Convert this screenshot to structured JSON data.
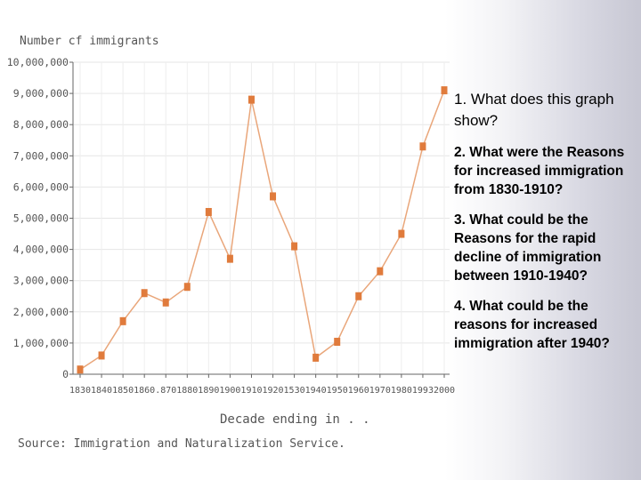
{
  "chart_data": {
    "type": "line",
    "ylabel": "Number cf immigrants",
    "xlabel": "Decade ending in . .",
    "source": "Source: Immigration and Naturalization Service.",
    "ylim": [
      0,
      10000000
    ],
    "y_ticks": [
      "0",
      "1,000,000",
      "2,000,000",
      "3,000,000",
      "4,000,000",
      "5,000,000",
      "6,000,000",
      "7,000,000",
      "8,000,000",
      "9,000,000",
      "10,000,000"
    ],
    "x_tick_labels": [
      "1830",
      "1840",
      "1850",
      "1860",
      ".870",
      "1880",
      "1890",
      "1900",
      "1910",
      "1920",
      "1530",
      "1940",
      "1950",
      "1960",
      "1970",
      "1980",
      "1993",
      "2000"
    ],
    "x": [
      1830,
      1840,
      1850,
      1860,
      1870,
      1880,
      1890,
      1900,
      1910,
      1920,
      1930,
      1940,
      1950,
      1960,
      1970,
      1980,
      1990,
      2000
    ],
    "values": [
      150000,
      600000,
      1700000,
      2600000,
      2300000,
      2800000,
      5200000,
      3700000,
      8800000,
      5700000,
      4100000,
      530000,
      1040000,
      2500000,
      3300000,
      4500000,
      7300000,
      9100000
    ],
    "series_color": "#e07b3c",
    "line_color": "#e9a67a"
  },
  "questions": {
    "q1": "1.  What does this graph show?",
    "q2": "2. What were the Reasons for increased immigration from 1830-1910?",
    "q3": "3. What could be the Reasons for the rapid decline of immigration between 1910-1940?",
    "q4": "4. What could be the reasons for increased immigration after 1940?"
  }
}
